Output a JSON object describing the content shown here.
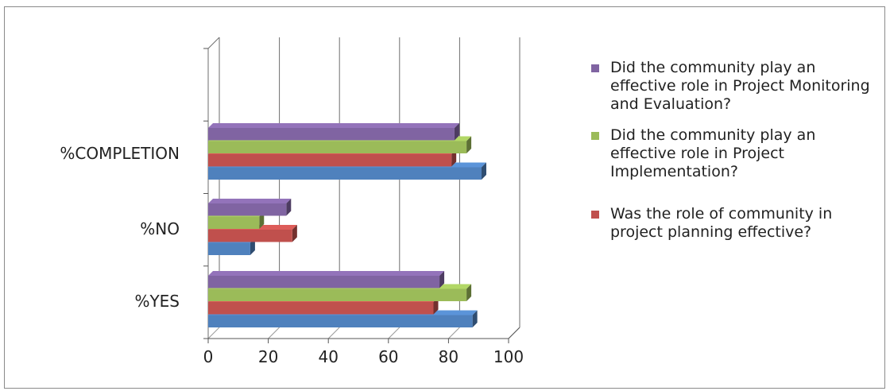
{
  "chart_data": {
    "type": "bar",
    "orientation": "horizontal",
    "style": "3d-clustered",
    "categories": [
      "%YES",
      "%NO",
      "%COMPLETION"
    ],
    "series": [
      {
        "name": "Was the role of community in project planning effective?",
        "color": "#4f81bd",
        "values": [
          88,
          14,
          91
        ]
      },
      {
        "name": "Was the role of community in project planning effective?",
        "color": "#c0504d",
        "values": [
          75,
          28,
          81
        ]
      },
      {
        "name": "Did the community play an effective role in Project Implementation?",
        "color": "#9bbb59",
        "values": [
          86,
          17,
          86
        ]
      },
      {
        "name": "Did the community play an effective role in Project Monitoring and Evaluation?",
        "color": "#8064a2",
        "values": [
          77,
          26,
          82
        ]
      }
    ],
    "xlim": [
      0,
      100
    ],
    "xticks": [
      "0",
      "20",
      "40",
      "60",
      "80",
      "100"
    ],
    "grid": true,
    "legend_position": "right",
    "legend_entries": [
      {
        "label": "Did the community play an effective role in Project Monitoring and Evaluation?",
        "color": "#8064a2"
      },
      {
        "label": "Did the community play an effective role in Project Implementation?",
        "color": "#9bbb59"
      },
      {
        "label": "Was the role of community in project planning effective?",
        "color": "#c0504d"
      }
    ]
  }
}
